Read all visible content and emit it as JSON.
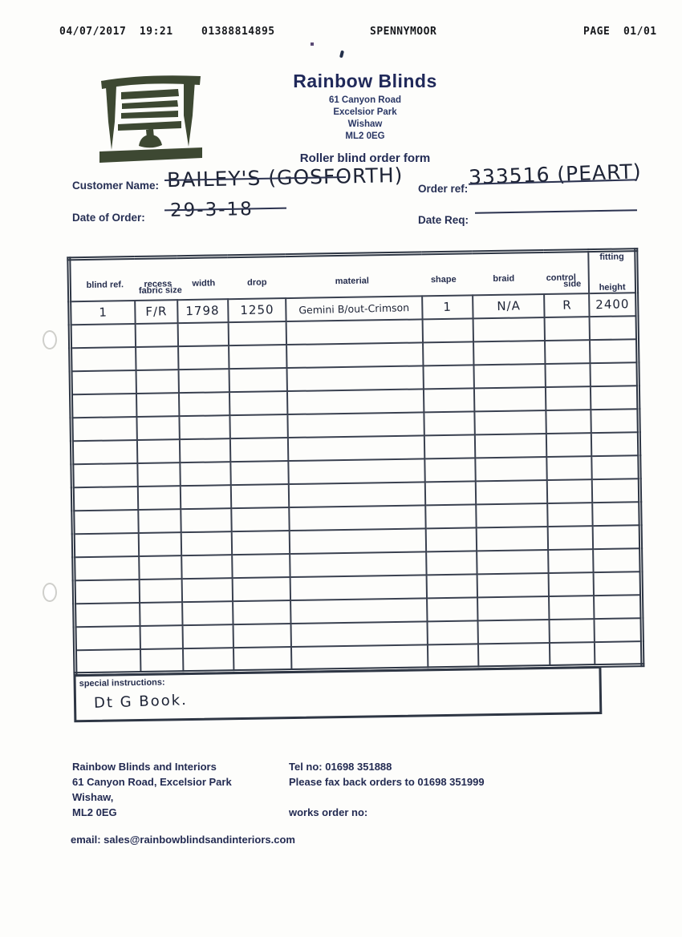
{
  "fax_header": {
    "datetime": "04/07/2017  19:21",
    "fax_number": "01388814895",
    "station": "SPENNYMOOR",
    "page": "PAGE  01/01"
  },
  "company": {
    "name": "Rainbow Blinds",
    "address_line1": "61 Canyon Road",
    "address_line2": "Excelsior Park",
    "address_line3": "Wishaw",
    "postcode": "ML2 0EG",
    "form_title": "Roller blind order form"
  },
  "order_fields": {
    "customer_name_label": "Customer Name:",
    "customer_name_value": "BAILEY'S (GOSFORTH)",
    "order_ref_label": "Order ref:",
    "order_ref_value": "333516 (PEART)",
    "date_of_order_label": "Date of Order:",
    "date_of_order_value": "29-3-18",
    "date_req_label": "Date Req:",
    "date_req_value": ""
  },
  "table": {
    "columns_line1": [
      "blind ref.",
      "recess",
      "width",
      "drop",
      "material",
      "shape",
      "braid",
      "control",
      "fitting"
    ],
    "columns_line2": {
      "recess_sub": "fabric size",
      "control_sub": "side",
      "fitting_sub": "height"
    },
    "rows": [
      [
        "1",
        "F/R",
        "1798",
        "1250",
        "Gemini B/out-Crimson",
        "1",
        "N/A",
        "R",
        "2400"
      ],
      [
        "",
        "",
        "",
        "",
        "",
        "",
        "",
        "",
        ""
      ],
      [
        "",
        "",
        "",
        "",
        "",
        "",
        "",
        "",
        ""
      ],
      [
        "",
        "",
        "",
        "",
        "",
        "",
        "",
        "",
        ""
      ],
      [
        "",
        "",
        "",
        "",
        "",
        "",
        "",
        "",
        ""
      ],
      [
        "",
        "",
        "",
        "",
        "",
        "",
        "",
        "",
        ""
      ],
      [
        "",
        "",
        "",
        "",
        "",
        "",
        "",
        "",
        ""
      ],
      [
        "",
        "",
        "",
        "",
        "",
        "",
        "",
        "",
        ""
      ],
      [
        "",
        "",
        "",
        "",
        "",
        "",
        "",
        "",
        ""
      ],
      [
        "",
        "",
        "",
        "",
        "",
        "",
        "",
        "",
        ""
      ],
      [
        "",
        "",
        "",
        "",
        "",
        "",
        "",
        "",
        ""
      ],
      [
        "",
        "",
        "",
        "",
        "",
        "",
        "",
        "",
        ""
      ],
      [
        "",
        "",
        "",
        "",
        "",
        "",
        "",
        "",
        ""
      ],
      [
        "",
        "",
        "",
        "",
        "",
        "",
        "",
        "",
        ""
      ],
      [
        "",
        "",
        "",
        "",
        "",
        "",
        "",
        "",
        ""
      ],
      [
        "",
        "",
        "",
        "",
        "",
        "",
        "",
        "",
        ""
      ]
    ]
  },
  "special_instructions": {
    "label": "special instructions:",
    "value": "Dt G Book."
  },
  "footer": {
    "company_name": "Rainbow Blinds and Interiors",
    "address": "61 Canyon Road, Excelsior Park",
    "town": "Wishaw,",
    "postcode": "ML2 0EG",
    "tel": "Tel no: 01698 351888",
    "fax_note": "Please fax back orders to 01698 351999",
    "works_order": "works order no:",
    "email": "email: sales@rainbowblindsandinteriors.com"
  },
  "icons": {
    "logo": "window-blind-logo-icon"
  },
  "colors": {
    "ink_print": "#232b52",
    "ink_handwriting": "#1d2335",
    "table_border": "#3a4150",
    "logo_green": "#3d4832"
  }
}
